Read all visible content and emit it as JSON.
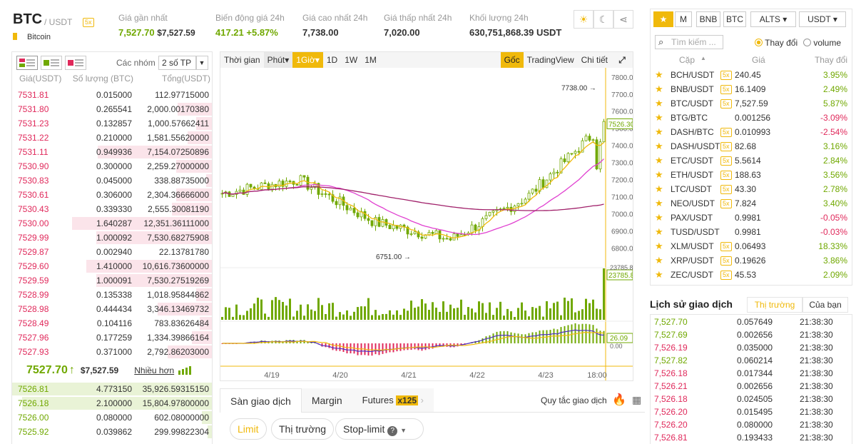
{
  "header": {
    "symbol": "BTC",
    "quote": "/ USDT",
    "leverage": "5x",
    "coin_name": "Bitcoin",
    "stats": [
      {
        "label": "Giá gần nhất",
        "value": "7,527.70",
        "sub": "$7,527.59",
        "color": "#70a800"
      },
      {
        "label": "Biến động giá 24h",
        "value": "417.21",
        "sub": "+5.87%",
        "color": "#70a800"
      },
      {
        "label": "Giá cao nhất 24h",
        "value": "7,738.00",
        "sub": "",
        "color": "#333"
      },
      {
        "label": "Giá thấp nhất 24h",
        "value": "7,020.00",
        "sub": "",
        "color": "#333"
      },
      {
        "label": "Khối lượng 24h",
        "value": "630,751,868.39 USDT",
        "sub": "",
        "color": "#333"
      }
    ]
  },
  "orderbook": {
    "group_label": "Các nhóm",
    "group_value": "2 số TP",
    "headers": [
      "Giá(USDT)",
      "Số lượng (BTC)",
      "Tổng(USDT)"
    ],
    "asks": [
      {
        "price": "7531.81",
        "qty": "0.015000",
        "total": "112.97715000",
        "depth": 0.0
      },
      {
        "price": "7531.80",
        "qty": "0.265541",
        "total": "2,000.00170380",
        "depth": 0.17
      },
      {
        "price": "7531.23",
        "qty": "0.132857",
        "total": "1,000.57662411",
        "depth": 0.08
      },
      {
        "price": "7531.22",
        "qty": "0.210000",
        "total": "1,581.55620000",
        "depth": 0.12
      },
      {
        "price": "7531.11",
        "qty": "0.949936",
        "total": "7,154.07250896",
        "depth": 0.57
      },
      {
        "price": "7530.90",
        "qty": "0.300000",
        "total": "2,259.27000000",
        "depth": 0.18
      },
      {
        "price": "7530.83",
        "qty": "0.045000",
        "total": "338.88735000",
        "depth": 0.03
      },
      {
        "price": "7530.61",
        "qty": "0.306000",
        "total": "2,304.36666000",
        "depth": 0.18
      },
      {
        "price": "7530.43",
        "qty": "0.339330",
        "total": "2,555.30081190",
        "depth": 0.2
      },
      {
        "price": "7530.00",
        "qty": "1.640287",
        "total": "12,351.36111000",
        "depth": 0.7
      },
      {
        "price": "7529.99",
        "qty": "1.000092",
        "total": "7,530.68275908",
        "depth": 0.58
      },
      {
        "price": "7529.87",
        "qty": "0.002940",
        "total": "22.13781780",
        "depth": 0.0
      },
      {
        "price": "7529.60",
        "qty": "1.410000",
        "total": "10,616.73600000",
        "depth": 0.63
      },
      {
        "price": "7529.59",
        "qty": "1.000091",
        "total": "7,530.27519269",
        "depth": 0.58
      },
      {
        "price": "7528.99",
        "qty": "0.135338",
        "total": "1,018.95844862",
        "depth": 0.08
      },
      {
        "price": "7528.98",
        "qty": "0.444434",
        "total": "3,346.13469732",
        "depth": 0.27
      },
      {
        "price": "7528.49",
        "qty": "0.104116",
        "total": "783.83626484",
        "depth": 0.06
      },
      {
        "price": "7527.96",
        "qty": "0.177259",
        "total": "1,334.39866164",
        "depth": 0.1
      },
      {
        "price": "7527.93",
        "qty": "0.371000",
        "total": "2,792.86203000",
        "depth": 0.22
      }
    ],
    "last_price": "7527.70",
    "last_arrow": "↑",
    "last_usd": "$7,527.59",
    "more_label": "Nhiều hơn",
    "bids": [
      {
        "price": "7526.81",
        "qty": "4.773150",
        "total": "35,926.59315150",
        "depth": 1.0
      },
      {
        "price": "7526.18",
        "qty": "2.100000",
        "total": "15,804.97800000",
        "depth": 0.95
      },
      {
        "price": "7526.00",
        "qty": "0.080000",
        "total": "602.08000000",
        "depth": 0.05
      },
      {
        "price": "7525.92",
        "qty": "0.039862",
        "total": "299.99822304",
        "depth": 0.02
      }
    ]
  },
  "chart": {
    "toolbar": [
      "Thời gian",
      "Phút▾",
      "1Giờ▾",
      "1D",
      "1W",
      "1M"
    ],
    "right_toolbar": [
      "Gốc",
      "TradingView",
      "Chi tiết"
    ],
    "price_ticks": [
      "7800.00",
      "7700.00",
      "7600.00",
      "7500.00",
      "7400.00",
      "7300.00",
      "7200.00",
      "7100.00",
      "7000.00",
      "6900.00",
      "6800.00"
    ],
    "dates": [
      "4/19",
      "4/20",
      "4/21",
      "4/22",
      "4/23",
      "18:00"
    ],
    "high_label": "7738.00",
    "low_label": "6751.00",
    "last_label": "7526.30",
    "vol_label": "23785.8",
    "macd_label": "26.09",
    "macd_zero": "0.00",
    "vol_top": "23785.8"
  },
  "chart_data": {
    "type": "line",
    "title": "",
    "x": [
      "4/19",
      "4/20",
      "4/21",
      "4/22",
      "4/23",
      "18:00"
    ],
    "series": [
      {
        "values": [
          7120,
          7200,
          6950,
          6850,
          7100,
          7526
        ]
      }
    ],
    "ylim": [
      6750,
      7800
    ]
  },
  "trade": {
    "tabs": [
      "Sàn giao dịch",
      "Margin",
      "Futures"
    ],
    "futures_badge": "x125",
    "rules": "Quy tắc giao dịch",
    "order_types": [
      "Limit",
      "Thị trường",
      "Stop-limit"
    ]
  },
  "markets": {
    "tabs": [
      "M",
      "BNB",
      "BTC",
      "ALTS ▾",
      "USDT ▾"
    ],
    "search": "Tìm kiếm ...",
    "radio1": "Thay đổi",
    "radio2": "volume",
    "headers": [
      "Cặp",
      "Giá",
      "Thay đổi"
    ],
    "rows": [
      {
        "pair": "BCH/USDT",
        "x5": true,
        "price": "240.45",
        "change": "3.95%",
        "up": true
      },
      {
        "pair": "BNB/USDT",
        "x5": true,
        "price": "16.1409",
        "change": "2.49%",
        "up": true
      },
      {
        "pair": "BTC/USDT",
        "x5": true,
        "price": "7,527.59",
        "change": "5.87%",
        "up": true
      },
      {
        "pair": "BTG/BTC",
        "x5": false,
        "price": "0.001256",
        "change": "-3.09%",
        "up": false
      },
      {
        "pair": "DASH/BTC",
        "x5": true,
        "price": "0.010993",
        "change": "-2.54%",
        "up": false
      },
      {
        "pair": "DASH/USDT",
        "x5": true,
        "price": "82.68",
        "change": "3.16%",
        "up": true
      },
      {
        "pair": "ETC/USDT",
        "x5": true,
        "price": "5.5614",
        "change": "2.84%",
        "up": true
      },
      {
        "pair": "ETH/USDT",
        "x5": true,
        "price": "188.63",
        "change": "3.56%",
        "up": true
      },
      {
        "pair": "LTC/USDT",
        "x5": true,
        "price": "43.30",
        "change": "2.78%",
        "up": true
      },
      {
        "pair": "NEO/USDT",
        "x5": true,
        "price": "7.824",
        "change": "3.40%",
        "up": true
      },
      {
        "pair": "PAX/USDT",
        "x5": false,
        "price": "0.9981",
        "change": "-0.05%",
        "up": false
      },
      {
        "pair": "TUSD/USDT",
        "x5": false,
        "price": "0.9981",
        "change": "-0.03%",
        "up": false
      },
      {
        "pair": "XLM/USDT",
        "x5": true,
        "price": "0.06493",
        "change": "18.33%",
        "up": true
      },
      {
        "pair": "XRP/USDT",
        "x5": true,
        "price": "0.19626",
        "change": "3.86%",
        "up": true
      },
      {
        "pair": "ZEC/USDT",
        "x5": true,
        "price": "45.53",
        "change": "2.09%",
        "up": true
      }
    ]
  },
  "history": {
    "title": "Lịch sử giao dịch",
    "tab1": "Thị trường",
    "tab2": "Của bạn",
    "rows": [
      {
        "price": "7,527.70",
        "qty": "0.057649",
        "time": "21:38:30",
        "up": true
      },
      {
        "price": "7,527.69",
        "qty": "0.002656",
        "time": "21:38:30",
        "up": true
      },
      {
        "price": "7,526.19",
        "qty": "0.035000",
        "time": "21:38:30",
        "up": false
      },
      {
        "price": "7,527.82",
        "qty": "0.060214",
        "time": "21:38:30",
        "up": true
      },
      {
        "price": "7,526.18",
        "qty": "0.017344",
        "time": "21:38:30",
        "up": false
      },
      {
        "price": "7,526.21",
        "qty": "0.002656",
        "time": "21:38:30",
        "up": false
      },
      {
        "price": "7,526.18",
        "qty": "0.024505",
        "time": "21:38:30",
        "up": false
      },
      {
        "price": "7,526.20",
        "qty": "0.015495",
        "time": "21:38:30",
        "up": false
      },
      {
        "price": "7,526.20",
        "qty": "0.080000",
        "time": "21:38:30",
        "up": false
      },
      {
        "price": "7,526.81",
        "qty": "0.193433",
        "time": "21:38:30",
        "up": false
      }
    ]
  }
}
